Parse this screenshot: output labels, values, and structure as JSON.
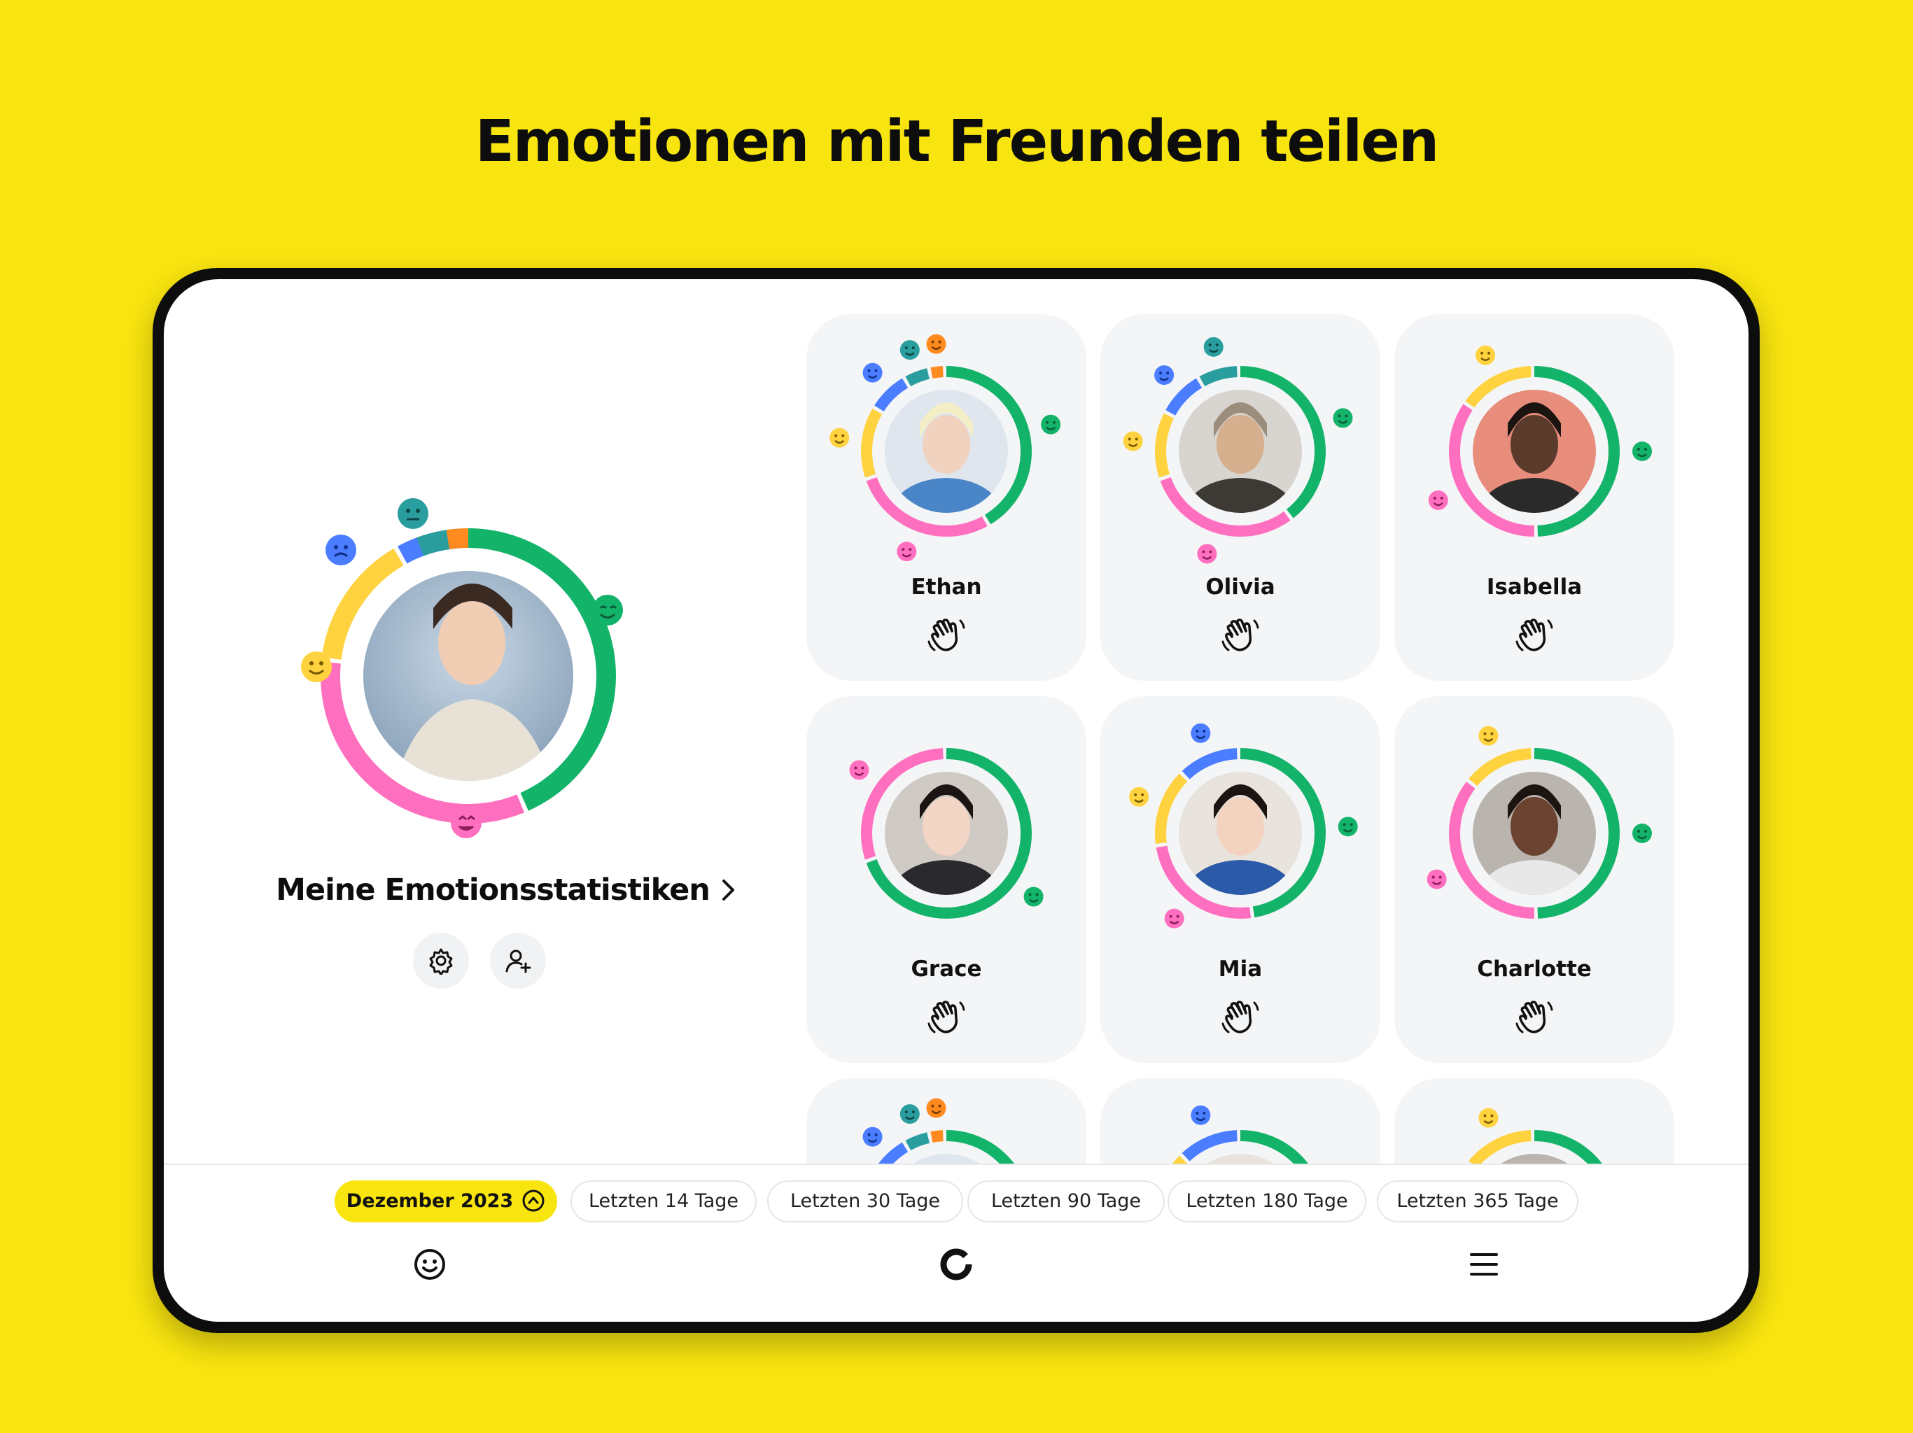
{
  "headline": "Emotionen mit Freunden teilen",
  "my_stats": {
    "title": "Meine Emotionsstatistiken",
    "settings_icon": "gear-icon",
    "add_friend_icon": "add-user-icon"
  },
  "friends": [
    {
      "name": "Ethan",
      "action_icon": "wave-hand-icon"
    },
    {
      "name": "Olivia",
      "action_icon": "wave-hand-icon"
    },
    {
      "name": "Isabella",
      "action_icon": "wave-hand-icon"
    },
    {
      "name": "Grace",
      "action_icon": "wave-hand-icon"
    },
    {
      "name": "Mia",
      "action_icon": "wave-hand-icon"
    },
    {
      "name": "Charlotte",
      "action_icon": "wave-hand-icon"
    }
  ],
  "periods": [
    {
      "label": "Dezember 2023",
      "active": true
    },
    {
      "label": "Letzten 14 Tage",
      "active": false
    },
    {
      "label": "Letzten 30 Tage",
      "active": false
    },
    {
      "label": "Letzten 90 Tage",
      "active": false
    },
    {
      "label": "Letzten 180 Tage",
      "active": false
    },
    {
      "label": "Letzten 365 Tage",
      "active": false
    }
  ],
  "nav": {
    "left_icon": "smiley-icon",
    "center_icon": "ring-logo-icon",
    "right_icon": "menu-icon"
  },
  "colors": {
    "background": "#f8e40f",
    "happy_green": "#13b36a",
    "love_pink": "#ff6fbf",
    "smile_yellow": "#ffd23f",
    "sad_blue": "#4a7dff",
    "worried_teal": "#2a9e9e",
    "angry_orange": "#ff8a1f"
  }
}
